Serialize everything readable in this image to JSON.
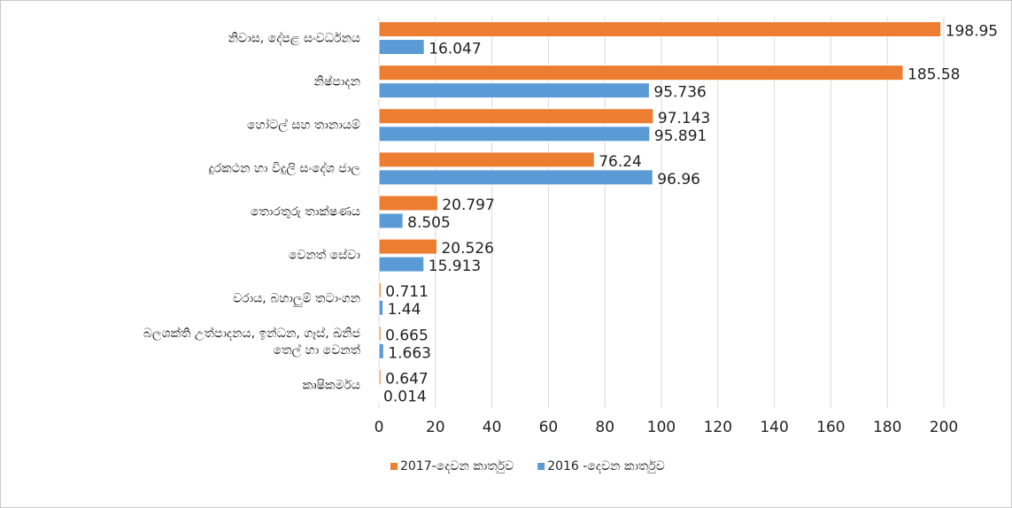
{
  "chart_data": {
    "type": "bar",
    "orientation": "horizontal",
    "categories": [
      "නිවාස, දේපළ සංවර්ධනය",
      "නිෂ්පාදන",
      "හෝටල් සහ තානායම්",
      "දුරකථන හා විදුලි සංදේශ ජාල",
      "තොරතුරු තාක්ෂණය",
      "වෙනත් සේවා",
      "වරාය, බහාලුම් තටාංගන",
      "බලශක්ති උත්පාදනය, ඉන්ධන, ගෑස්, ඛනිජ\nතෙල් හා වෙනත්",
      "කෘෂිකර්මය"
    ],
    "series": [
      {
        "name": "2017-දෙවන කාර්තුව",
        "color": "#ed7d31",
        "values": [
          198.95,
          185.58,
          97.143,
          76.24,
          20.797,
          20.526,
          0.711,
          0.665,
          0.647
        ]
      },
      {
        "name": "2016 -දෙවන කාර්තුව",
        "color": "#5b9bd5",
        "values": [
          16.047,
          95.736,
          95.891,
          96.96,
          8.505,
          15.913,
          1.44,
          1.663,
          0.014
        ]
      }
    ],
    "xlim": [
      0,
      200
    ],
    "xticks": [
      0,
      20,
      40,
      60,
      80,
      100,
      120,
      140,
      160,
      180,
      200
    ],
    "grid": true,
    "legend": "bottom"
  }
}
